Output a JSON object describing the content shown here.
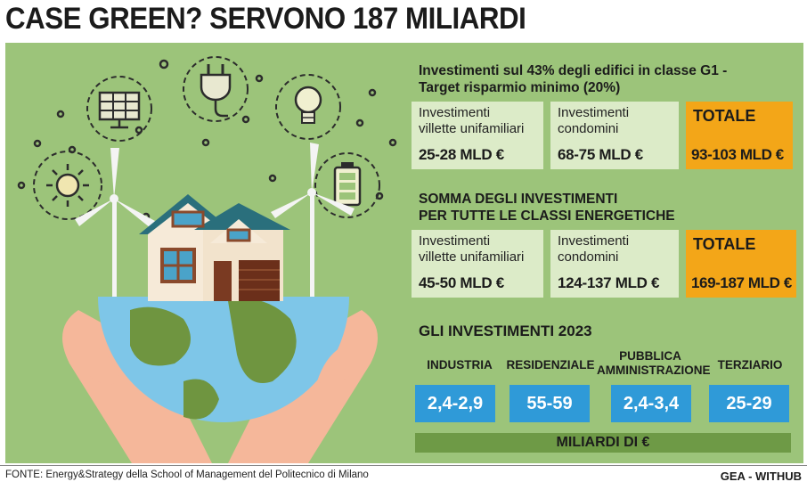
{
  "title": "CASE GREEN? SERVONO 187 MILIARDI",
  "section1": {
    "title_line1": "Investimenti sul 43% degli edifici in classe G1 -",
    "title_line2": "Target risparmio minimo (20%)",
    "villette_label_1": "Investimenti",
    "villette_label_2": "villette unifamiliari",
    "villette_value": "25-28 MLD €",
    "condomini_label_1": "Investimenti",
    "condomini_label_2": "condomini",
    "condomini_value": "68-75 MLD €",
    "total_label": "TOTALE",
    "total_value": "93-103 MLD €"
  },
  "section2": {
    "title_line1": "SOMMA DEGLI INVESTIMENTI",
    "title_line2": "PER TUTTE LE CLASSI ENERGETICHE",
    "villette_label_1": "Investimenti",
    "villette_label_2": "villette unifamiliari",
    "villette_value": "45-50 MLD €",
    "condomini_label_1": "Investimenti",
    "condomini_label_2": "condomini",
    "condomini_value": "124-137 MLD €",
    "total_label": "TOTALE",
    "total_value": "169-187 MLD €"
  },
  "section3": {
    "title": "GLI INVESTIMENTI 2023",
    "categories": [
      {
        "label": "INDUSTRIA",
        "value": "2,4-2,9"
      },
      {
        "label": "RESIDENZIALE",
        "value": "55-59"
      },
      {
        "label_1": "PUBBLICA",
        "label_2": "AMMINISTRAZIONE",
        "value": "2,4-3,4"
      },
      {
        "label": "TERZIARIO",
        "value": "25-29"
      }
    ],
    "unit": "MILIARDI DI €"
  },
  "footer": {
    "source": "FONTE:  Energy&Strategy della School of Management del Politecnico di Milano",
    "brand": "GEA - WITHUB"
  },
  "colors": {
    "panel": "#9cc47a",
    "box": "#dcebc8",
    "total": "#f3a618",
    "value_box": "#2f9ad8",
    "unit_bar": "#6e9a46"
  },
  "illustration": {
    "icons": [
      "solar-panel-icon",
      "plug-icon",
      "lightbulb-icon",
      "sun-icon",
      "battery-icon"
    ],
    "scene": "hands-holding-globe-with-house-and-wind-turbines"
  }
}
